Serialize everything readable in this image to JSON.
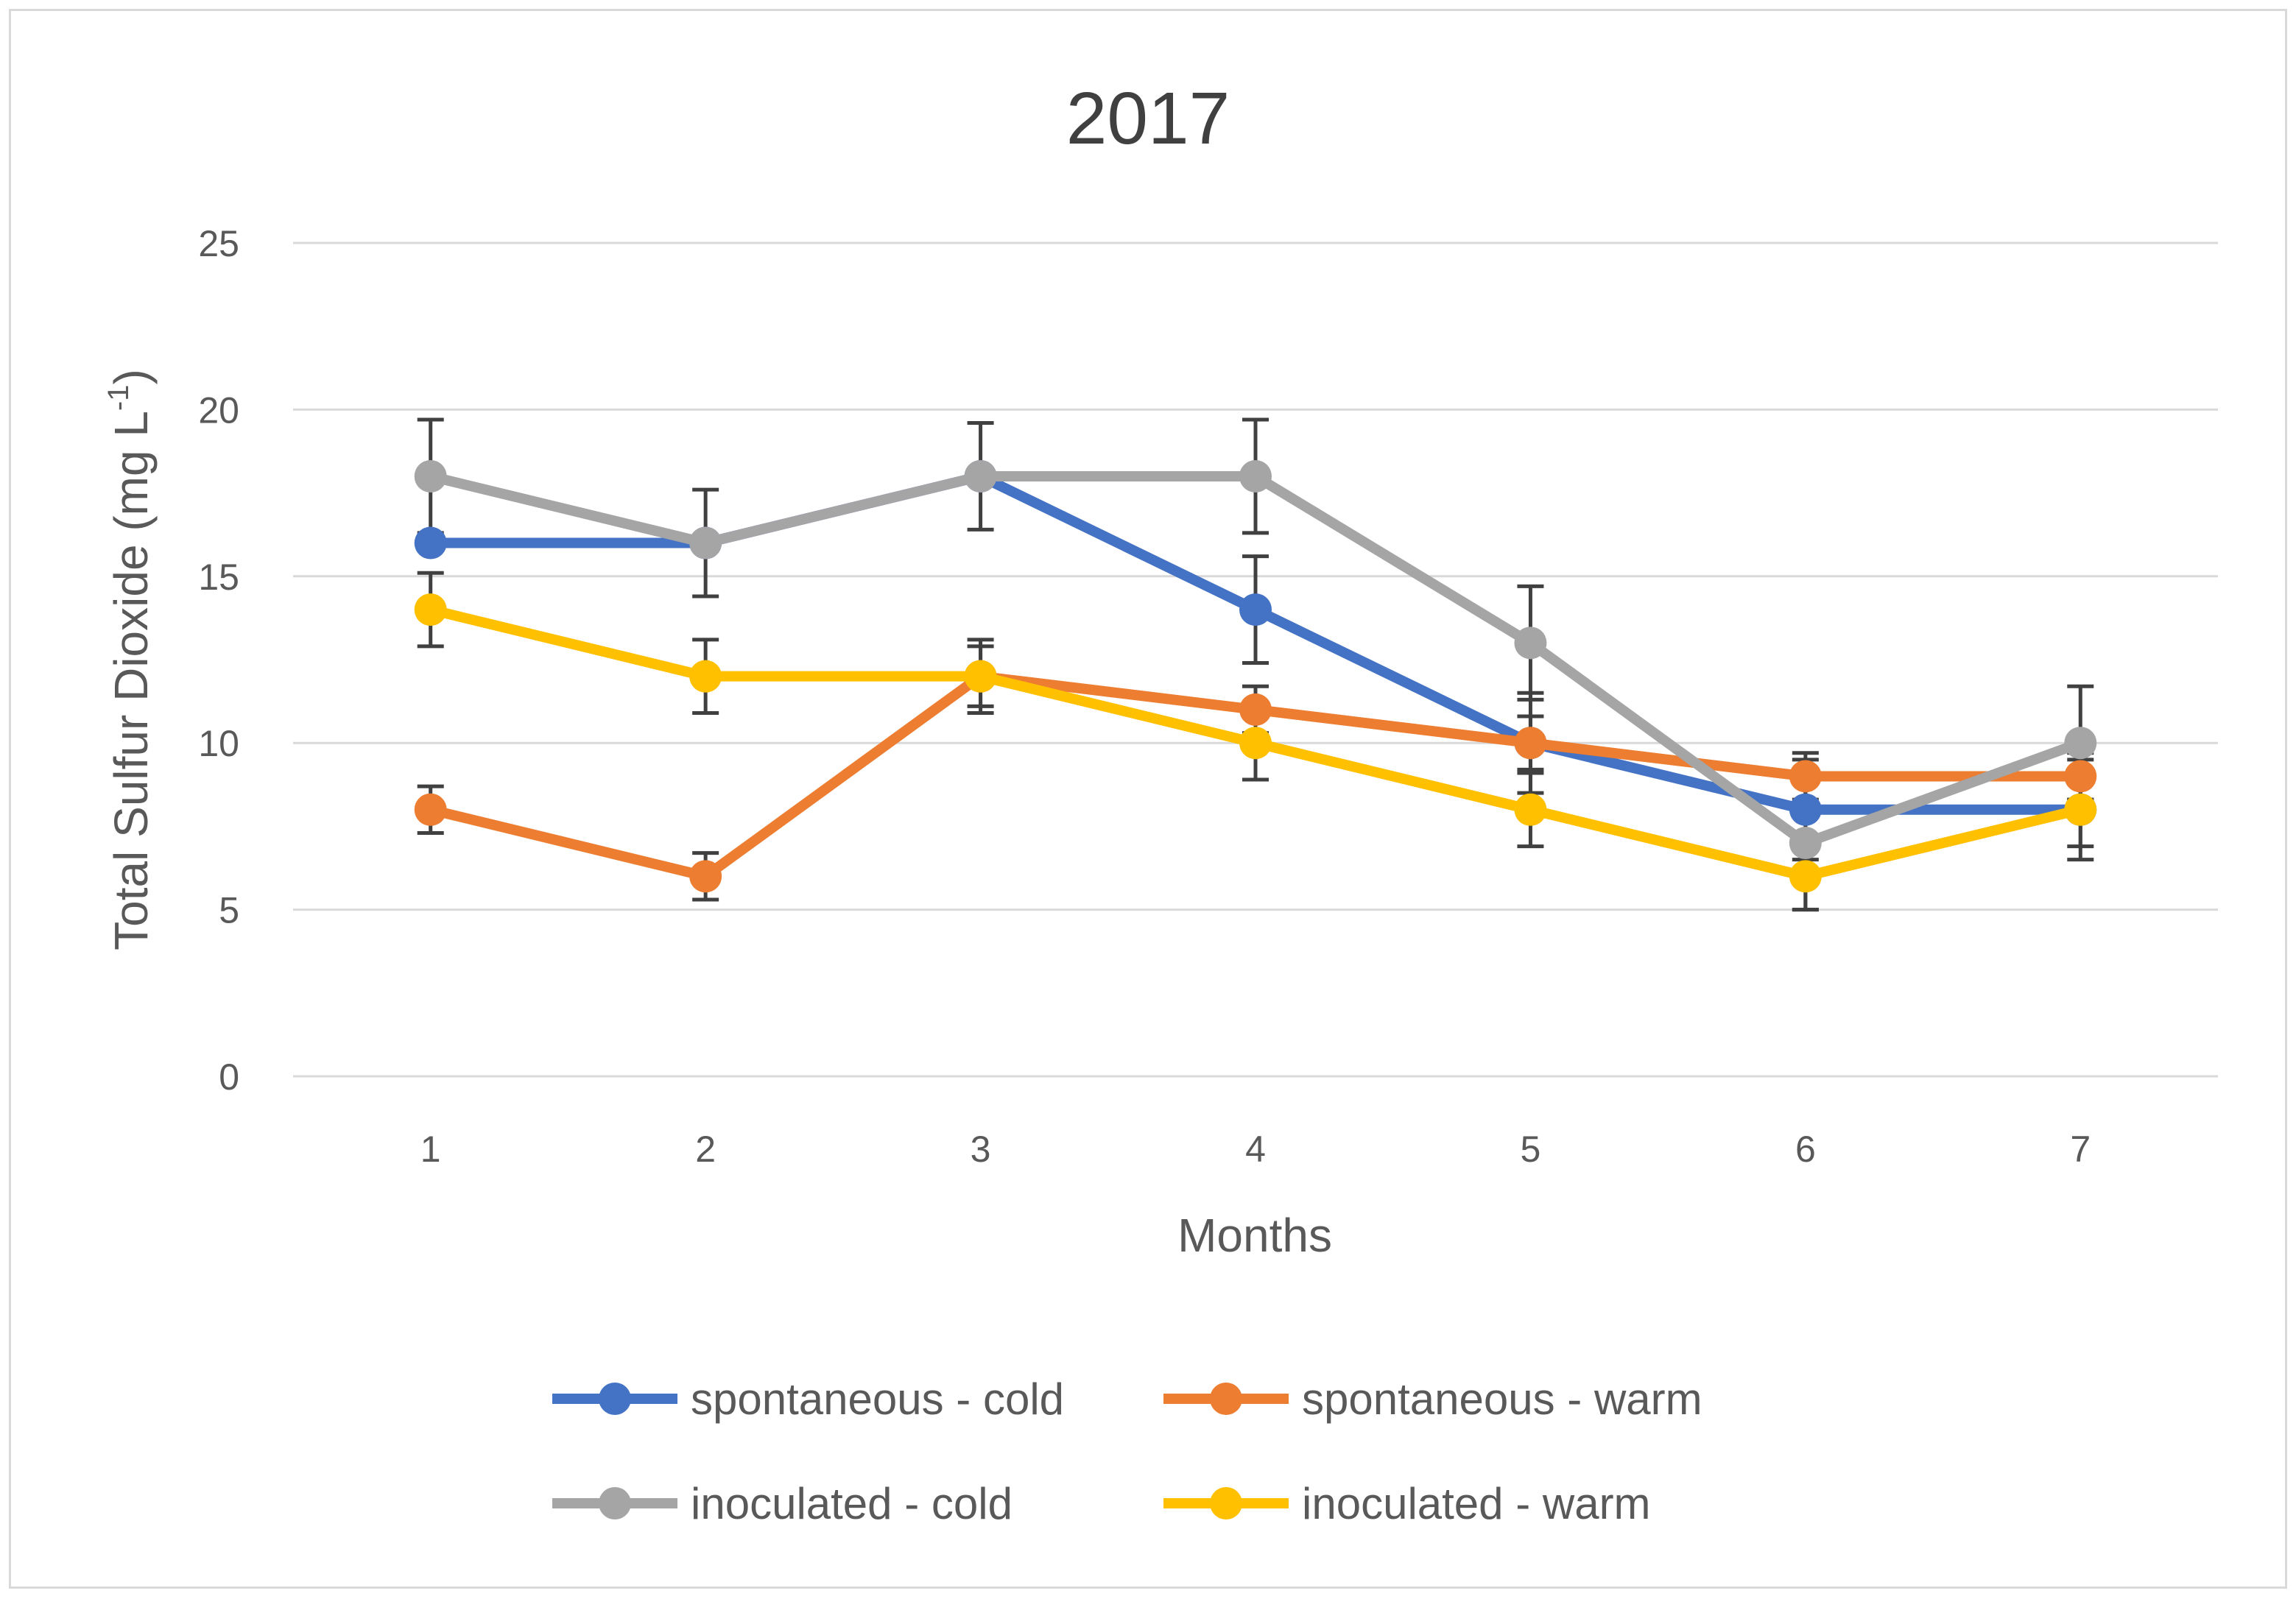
{
  "chart_data": {
    "type": "line",
    "title": "2017",
    "xlabel": "Months",
    "ylabel": "Total Sulfur Dioxide (mg L",
    "ylabel_sup": "-1",
    "ylabel_close": ")",
    "x": [
      1,
      2,
      3,
      4,
      5,
      6,
      7
    ],
    "x_tick_labels": [
      "1",
      "2",
      "3",
      "4",
      "5",
      "6",
      "7"
    ],
    "ylim": [
      0,
      25
    ],
    "y_ticks": [
      0,
      5,
      10,
      15,
      20,
      25
    ],
    "y_tick_labels": [
      "0",
      "5",
      "10",
      "15",
      "20",
      "25"
    ],
    "grid": true,
    "legend_position": "bottom",
    "series": [
      {
        "name": "spontaneous - cold",
        "color": "#4472c4",
        "values": [
          16,
          16,
          18,
          14,
          10,
          8,
          8
        ],
        "errors": [
          0,
          0,
          0,
          1.6,
          1.5,
          1.5,
          1.5
        ]
      },
      {
        "name": "spontaneous - warm",
        "color": "#ed7d31",
        "values": [
          8,
          6,
          12,
          11,
          10,
          9,
          9
        ],
        "errors": [
          0.7,
          0.7,
          0.9,
          0.7,
          0.8,
          0.7,
          0.7
        ]
      },
      {
        "name": "inoculated - cold",
        "color": "#a5a5a5",
        "values": [
          18,
          16,
          18,
          18,
          13,
          7,
          10
        ],
        "errors": [
          1.7,
          1.6,
          1.6,
          1.7,
          1.7,
          2.0,
          1.7
        ]
      },
      {
        "name": "inoculated - warm",
        "color": "#ffc000",
        "values": [
          14,
          12,
          12,
          10,
          8,
          6,
          8
        ],
        "errors": [
          1.1,
          1.1,
          1.1,
          1.1,
          1.1,
          1.0,
          1.1
        ]
      }
    ]
  }
}
